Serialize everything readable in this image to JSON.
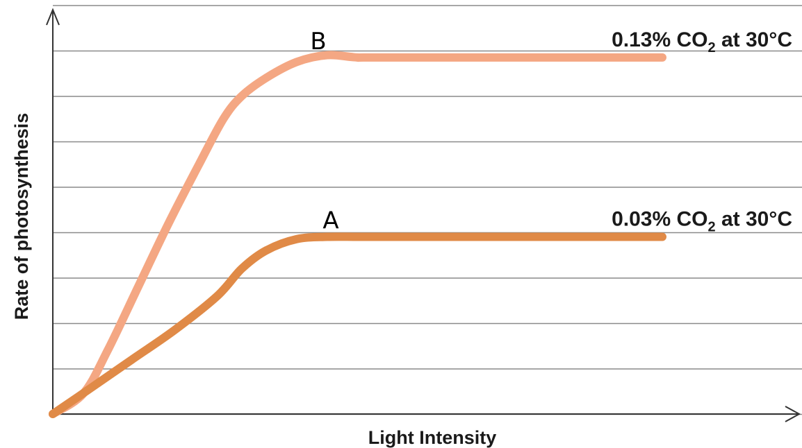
{
  "chart_data": {
    "type": "line",
    "title": "",
    "xlabel": "Light Intensity",
    "ylabel": "Rate of photosynthesis",
    "xlim": [
      0,
      100
    ],
    "ylim": [
      0,
      8
    ],
    "grid": true,
    "series": [
      {
        "name": "0.13% CO2 at 30°C",
        "marker": "B",
        "label_parts": [
          "0.13% CO",
          "2",
          " at 30°C"
        ],
        "color": "#f4a783",
        "x": [
          0,
          5,
          9,
          14,
          19,
          24,
          28,
          31,
          35,
          40,
          45,
          50,
          55,
          100
        ],
        "y": [
          0,
          0.45,
          1.4,
          2.8,
          4.2,
          5.5,
          6.5,
          7.0,
          7.4,
          7.75,
          7.9,
          7.85,
          7.85,
          7.85
        ]
      },
      {
        "name": "0.03% CO2 at 30°C",
        "marker": "A",
        "label_parts": [
          "0.03% CO",
          "2",
          " at 30°C"
        ],
        "color": "#e08a47",
        "x": [
          0,
          6,
          13,
          20,
          27,
          31,
          35,
          40,
          45,
          50,
          55,
          100
        ],
        "y": [
          0,
          0.55,
          1.2,
          1.85,
          2.6,
          3.2,
          3.6,
          3.85,
          3.9,
          3.9,
          3.9,
          3.9
        ]
      }
    ]
  }
}
